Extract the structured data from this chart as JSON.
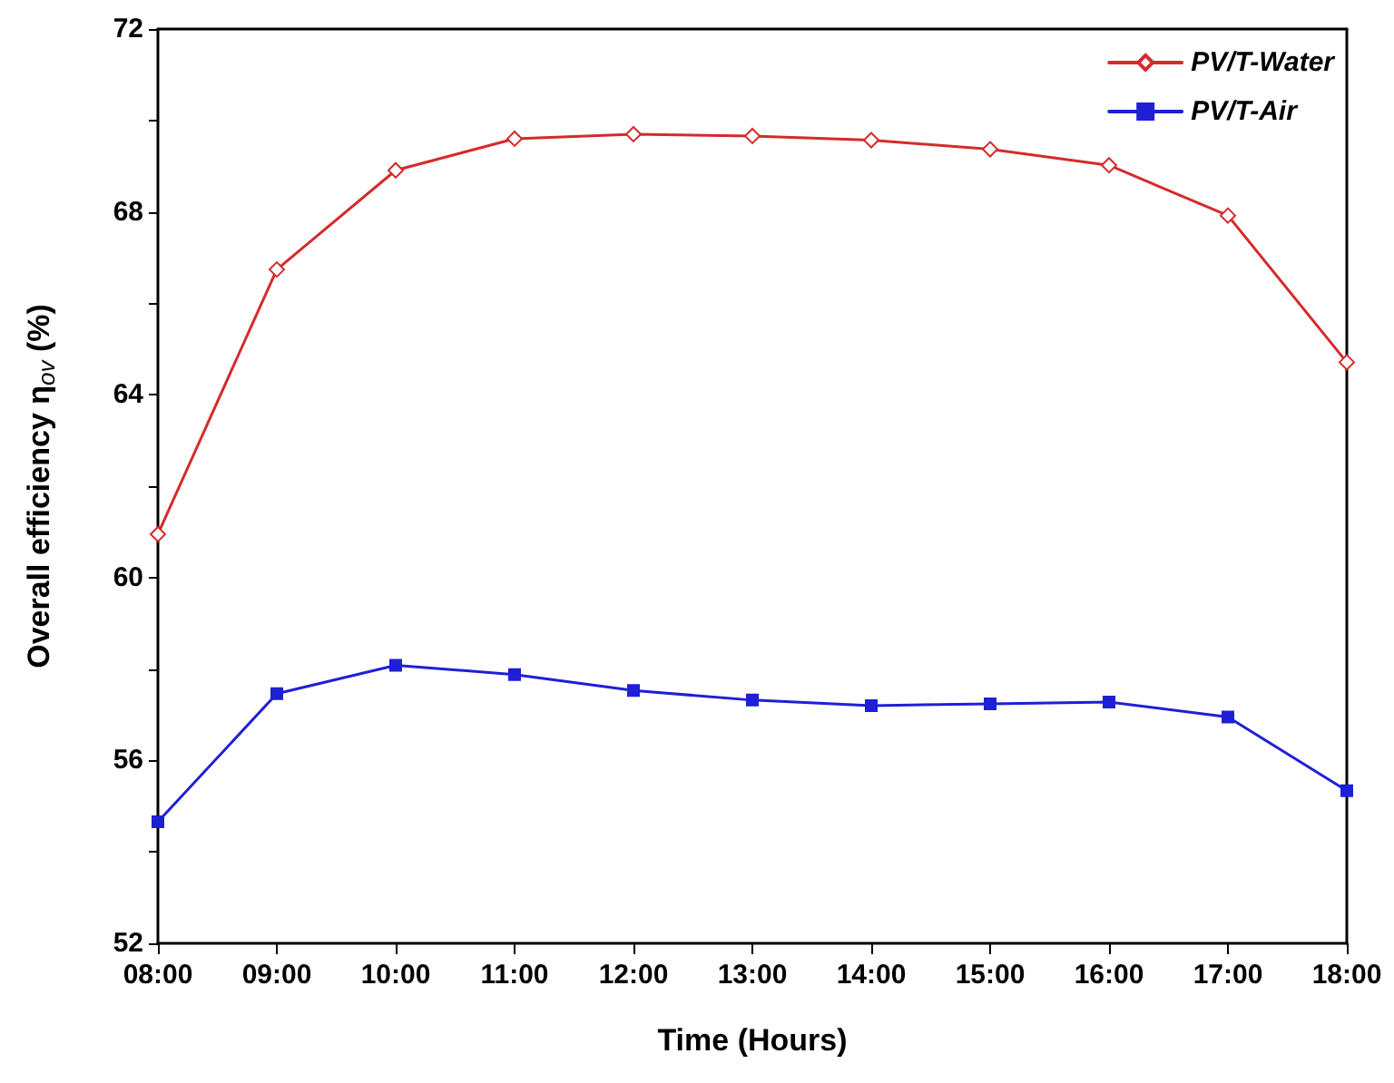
{
  "chart_data": {
    "type": "line",
    "xlabel": "Time (Hours)",
    "ylabel": "Overall efficiency η$_{ov}$ (%)",
    "categories": [
      "08:00",
      "09:00",
      "10:00",
      "11:00",
      "12:00",
      "13:00",
      "14:00",
      "15:00",
      "16:00",
      "17:00",
      "18:00"
    ],
    "series": [
      {
        "name": "PV/T-Water",
        "color": "#d42b2b",
        "marker": "diamond",
        "values": [
          60.95,
          66.74,
          68.91,
          69.6,
          69.7,
          69.66,
          69.57,
          69.37,
          69.02,
          67.92,
          64.71
        ]
      },
      {
        "name": "PV/T-Air",
        "color": "#1f1fd6",
        "marker": "square",
        "values": [
          54.66,
          57.46,
          58.08,
          57.88,
          57.53,
          57.32,
          57.2,
          57.24,
          57.28,
          56.95,
          55.34
        ]
      }
    ],
    "ylim": [
      52,
      72
    ],
    "yticks": [
      52,
      {
        "value": 54,
        "label": null
      },
      56,
      {
        "value": 58,
        "label": null
      },
      60,
      {
        "value": 62,
        "label": null
      },
      64,
      {
        "value": 66,
        "label": null
      },
      68,
      {
        "value": 70,
        "label": null
      },
      72
    ],
    "grid": false,
    "legend": "top right",
    "line_style": "solid"
  }
}
